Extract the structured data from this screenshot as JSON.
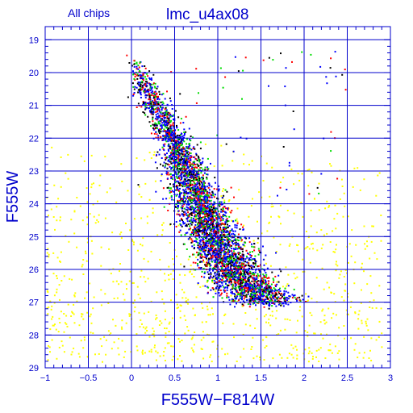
{
  "header": {
    "subset_label": "All chips",
    "field_label": "lmc_u4ax08"
  },
  "chart_data": {
    "type": "scatter",
    "title": "lmc_u4ax08",
    "subtitle": "All chips",
    "xlabel": "F555W−F814W",
    "ylabel": "F555W",
    "xlim": [
      -1,
      3
    ],
    "ylim": [
      29,
      18.5
    ],
    "y_inverted": true,
    "grid": true,
    "x_ticks": [
      -1,
      -0.5,
      0,
      0.5,
      1,
      1.5,
      2,
      2.5,
      3
    ],
    "x_tick_labels": [
      "−1",
      "−0.5",
      "0",
      "0.5",
      "1",
      "1.5",
      "2",
      "2.5",
      "3"
    ],
    "y_ticks": [
      19,
      20,
      21,
      22,
      23,
      24,
      25,
      26,
      27,
      28,
      29
    ],
    "y_tick_labels": [
      "19",
      "20",
      "21",
      "22",
      "23",
      "24",
      "25",
      "26",
      "27",
      "28",
      "29"
    ],
    "colors": {
      "axis": "#0000cc",
      "yellow_points": "#ffff00",
      "red_points": "#ff0000",
      "green_points": "#00dd00",
      "blue_points": "#0000ff",
      "black_points": "#000000"
    },
    "main_sequence_ridge": [
      {
        "color": 0.05,
        "mag": 19.6
      },
      {
        "color": 0.12,
        "mag": 20.2
      },
      {
        "color": 0.22,
        "mag": 20.8
      },
      {
        "color": 0.35,
        "mag": 21.4
      },
      {
        "color": 0.48,
        "mag": 22.0
      },
      {
        "color": 0.58,
        "mag": 22.6
      },
      {
        "color": 0.66,
        "mag": 23.2
      },
      {
        "color": 0.74,
        "mag": 23.8
      },
      {
        "color": 0.84,
        "mag": 24.4
      },
      {
        "color": 0.95,
        "mag": 25.0
      },
      {
        "color": 1.08,
        "mag": 25.6
      },
      {
        "color": 1.22,
        "mag": 26.2
      },
      {
        "color": 1.38,
        "mag": 26.6
      },
      {
        "color": 1.55,
        "mag": 26.9
      }
    ],
    "yellow_field_region": {
      "color_range": [
        -1,
        2.9
      ],
      "mag_range": [
        22,
        28.8
      ]
    }
  }
}
